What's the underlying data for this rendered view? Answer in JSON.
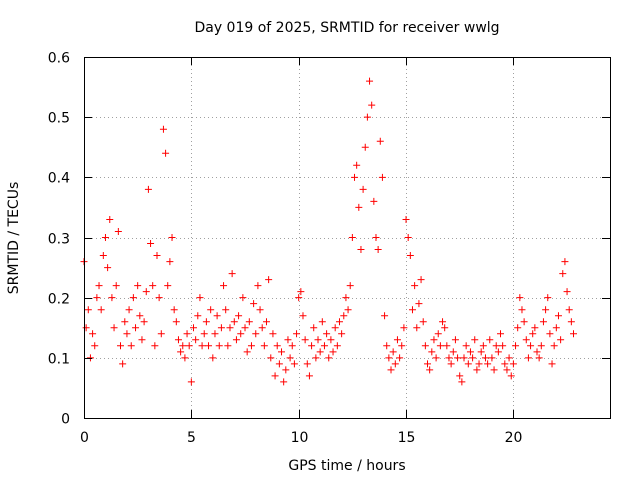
{
  "chart_data": {
    "type": "scatter",
    "title": "Day 019 of 2025, SRMTID for receiver wwlg",
    "xlabel": "GPS time / hours",
    "ylabel": "SRMTID / TECUs",
    "xlim": [
      0,
      24.5
    ],
    "ylim": [
      0,
      0.6
    ],
    "xticks": [
      0,
      5,
      10,
      15,
      20
    ],
    "xtick_labels": [
      "0",
      "5",
      "10",
      "15",
      "20"
    ],
    "yticks": [
      0,
      0.1,
      0.2,
      0.3,
      0.4,
      0.5,
      0.6
    ],
    "ytick_labels": [
      "0",
      "0.1",
      "0.2",
      "0.3",
      "0.4",
      "0.5",
      "0.6"
    ],
    "grid": true,
    "marker": "+",
    "color": "#ff0000",
    "series": [
      {
        "name": "SRMTID",
        "x": [
          0.0,
          0.1,
          0.2,
          0.3,
          0.4,
          0.5,
          0.6,
          0.7,
          0.8,
          0.9,
          1.0,
          1.1,
          1.2,
          1.3,
          1.4,
          1.5,
          1.6,
          1.7,
          1.8,
          1.9,
          2.0,
          2.1,
          2.2,
          2.3,
          2.4,
          2.5,
          2.6,
          2.7,
          2.8,
          2.9,
          3.0,
          3.1,
          3.2,
          3.3,
          3.4,
          3.5,
          3.6,
          3.7,
          3.8,
          3.9,
          4.0,
          4.1,
          4.2,
          4.3,
          4.4,
          4.5,
          4.6,
          4.7,
          4.8,
          4.9,
          5.0,
          5.1,
          5.2,
          5.3,
          5.4,
          5.5,
          5.6,
          5.7,
          5.8,
          5.9,
          6.0,
          6.1,
          6.2,
          6.3,
          6.4,
          6.5,
          6.6,
          6.7,
          6.8,
          6.9,
          7.0,
          7.1,
          7.2,
          7.3,
          7.4,
          7.5,
          7.6,
          7.7,
          7.8,
          7.9,
          8.0,
          8.1,
          8.2,
          8.3,
          8.4,
          8.5,
          8.6,
          8.7,
          8.8,
          8.9,
          9.0,
          9.1,
          9.2,
          9.3,
          9.4,
          9.5,
          9.6,
          9.7,
          9.8,
          9.9,
          10.0,
          10.1,
          10.2,
          10.3,
          10.4,
          10.5,
          10.6,
          10.7,
          10.8,
          10.9,
          11.0,
          11.1,
          11.2,
          11.3,
          11.4,
          11.5,
          11.6,
          11.7,
          11.8,
          11.9,
          12.0,
          12.1,
          12.2,
          12.3,
          12.4,
          12.5,
          12.6,
          12.7,
          12.8,
          12.9,
          13.0,
          13.1,
          13.2,
          13.3,
          13.4,
          13.5,
          13.6,
          13.7,
          13.8,
          13.9,
          14.0,
          14.1,
          14.2,
          14.3,
          14.4,
          14.5,
          14.6,
          14.7,
          14.8,
          14.9,
          15.0,
          15.1,
          15.2,
          15.3,
          15.4,
          15.5,
          15.6,
          15.7,
          15.8,
          15.9,
          16.0,
          16.1,
          16.2,
          16.3,
          16.4,
          16.5,
          16.6,
          16.7,
          16.8,
          16.9,
          17.0,
          17.1,
          17.2,
          17.3,
          17.4,
          17.5,
          17.6,
          17.7,
          17.8,
          17.9,
          18.0,
          18.1,
          18.2,
          18.3,
          18.4,
          18.5,
          18.6,
          18.7,
          18.8,
          18.9,
          19.0,
          19.1,
          19.2,
          19.3,
          19.4,
          19.5,
          19.6,
          19.7,
          19.8,
          19.9,
          20.0,
          20.1,
          20.2,
          20.3,
          20.4,
          20.5,
          20.6,
          20.7,
          20.8,
          20.9,
          21.0,
          21.1,
          21.2,
          21.3,
          21.4,
          21.5,
          21.6,
          21.7,
          21.8,
          21.9,
          22.0,
          22.1,
          22.2,
          22.3,
          22.4,
          22.5,
          22.6,
          22.7,
          22.8
        ],
        "y": [
          0.26,
          0.15,
          0.18,
          0.1,
          0.14,
          0.12,
          0.2,
          0.22,
          0.18,
          0.27,
          0.3,
          0.25,
          0.33,
          0.2,
          0.15,
          0.22,
          0.31,
          0.12,
          0.09,
          0.16,
          0.14,
          0.18,
          0.12,
          0.2,
          0.15,
          0.22,
          0.17,
          0.13,
          0.16,
          0.21,
          0.38,
          0.29,
          0.22,
          0.12,
          0.27,
          0.2,
          0.14,
          0.48,
          0.44,
          0.22,
          0.26,
          0.3,
          0.18,
          0.16,
          0.13,
          0.11,
          0.12,
          0.1,
          0.14,
          0.12,
          0.06,
          0.15,
          0.13,
          0.17,
          0.2,
          0.12,
          0.14,
          0.16,
          0.12,
          0.18,
          0.1,
          0.14,
          0.17,
          0.12,
          0.15,
          0.22,
          0.18,
          0.12,
          0.15,
          0.24,
          0.16,
          0.13,
          0.17,
          0.14,
          0.2,
          0.15,
          0.11,
          0.16,
          0.12,
          0.19,
          0.14,
          0.22,
          0.18,
          0.15,
          0.12,
          0.16,
          0.23,
          0.1,
          0.14,
          0.07,
          0.12,
          0.09,
          0.11,
          0.06,
          0.08,
          0.13,
          0.1,
          0.12,
          0.09,
          0.14,
          0.2,
          0.21,
          0.17,
          0.13,
          0.09,
          0.07,
          0.12,
          0.15,
          0.1,
          0.13,
          0.11,
          0.16,
          0.12,
          0.14,
          0.1,
          0.13,
          0.11,
          0.15,
          0.12,
          0.16,
          0.14,
          0.17,
          0.2,
          0.18,
          0.22,
          0.3,
          0.4,
          0.42,
          0.35,
          0.28,
          0.38,
          0.45,
          0.5,
          0.56,
          0.52,
          0.36,
          0.3,
          0.28,
          0.46,
          0.4,
          0.17,
          0.12,
          0.1,
          0.08,
          0.11,
          0.09,
          0.13,
          0.1,
          0.12,
          0.15,
          0.33,
          0.3,
          0.27,
          0.18,
          0.22,
          0.15,
          0.19,
          0.23,
          0.16,
          0.12,
          0.09,
          0.08,
          0.11,
          0.13,
          0.1,
          0.14,
          0.12,
          0.16,
          0.15,
          0.12,
          0.1,
          0.09,
          0.11,
          0.13,
          0.1,
          0.07,
          0.06,
          0.1,
          0.12,
          0.09,
          0.11,
          0.1,
          0.13,
          0.08,
          0.09,
          0.11,
          0.12,
          0.1,
          0.09,
          0.13,
          0.1,
          0.08,
          0.12,
          0.11,
          0.14,
          0.12,
          0.09,
          0.08,
          0.1,
          0.07,
          0.09,
          0.12,
          0.15,
          0.2,
          0.18,
          0.16,
          0.13,
          0.1,
          0.12,
          0.14,
          0.15,
          0.11,
          0.1,
          0.12,
          0.16,
          0.18,
          0.2,
          0.14,
          0.09,
          0.12,
          0.15,
          0.17,
          0.13,
          0.24,
          0.26,
          0.21,
          0.18,
          0.16,
          0.14
        ]
      }
    ]
  }
}
